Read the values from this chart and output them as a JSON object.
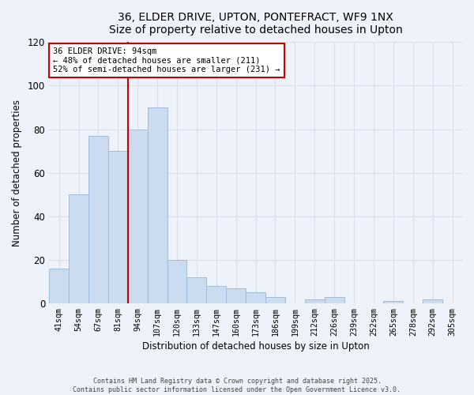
{
  "title": "36, ELDER DRIVE, UPTON, PONTEFRACT, WF9 1NX",
  "subtitle": "Size of property relative to detached houses in Upton",
  "xlabel": "Distribution of detached houses by size in Upton",
  "ylabel": "Number of detached properties",
  "bar_labels": [
    "41sqm",
    "54sqm",
    "67sqm",
    "81sqm",
    "94sqm",
    "107sqm",
    "120sqm",
    "133sqm",
    "147sqm",
    "160sqm",
    "173sqm",
    "186sqm",
    "199sqm",
    "212sqm",
    "226sqm",
    "239sqm",
    "252sqm",
    "265sqm",
    "278sqm",
    "292sqm",
    "305sqm"
  ],
  "bar_heights": [
    16,
    50,
    77,
    70,
    80,
    90,
    20,
    12,
    8,
    7,
    5,
    3,
    0,
    2,
    3,
    0,
    0,
    1,
    0,
    2,
    0
  ],
  "bar_color": "#ccdcf0",
  "bar_edge_color": "#a0bcd8",
  "vline_color": "#cc0000",
  "vline_x_index": 3.5,
  "ylim": [
    0,
    120
  ],
  "yticks": [
    0,
    20,
    40,
    60,
    80,
    100,
    120
  ],
  "annotation_title": "36 ELDER DRIVE: 94sqm",
  "annotation_line1": "← 48% of detached houses are smaller (211)",
  "annotation_line2": "52% of semi-detached houses are larger (231) →",
  "annotation_box_color": "#ffffff",
  "annotation_box_edge": "#cc0000",
  "footer_line1": "Contains HM Land Registry data © Crown copyright and database right 2025.",
  "footer_line2": "Contains public sector information licensed under the Open Government Licence v3.0.",
  "background_color": "#eef2fa",
  "grid_color": "#d8e0ee"
}
